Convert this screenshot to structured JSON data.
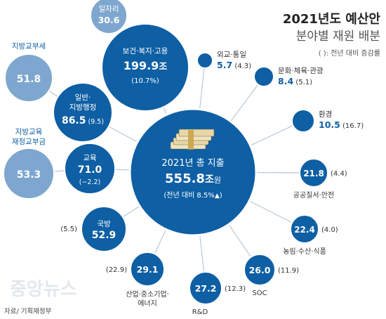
{
  "header": {
    "title": "2021년도 예산안",
    "subtitle": "분야별 재원 배분",
    "legend_note": "( ): 전년 대비 증감률"
  },
  "footer": {
    "source": "자료/ 기획재정부",
    "watermark": "중앙뉴스"
  },
  "colors": {
    "dark": "#0e5fa4",
    "light": "#7ea7cf",
    "connector": "#b9c7d4",
    "text_dark": "#333333"
  },
  "chart_data": {
    "type": "bubble",
    "title": "2021년도 예산안",
    "subtitle": "분야별 재원 배분",
    "unit_note": "( ): 전년 대비 증감률",
    "center": {
      "line1": "2021년 총 지출",
      "value": "555.8",
      "unit_jo": "조",
      "unit_won": "원",
      "change_text": "(전년 대비 8.5%",
      "change_arrow": "▲",
      "change_close": ")",
      "total_trillion_won": 555.8,
      "change_pct": 8.5
    },
    "series": [
      {
        "id": "welfare",
        "name": "보건·복지·고용",
        "value": 199.9,
        "value_text": "199.9",
        "unit": "조",
        "change_text": "(10.7%)",
        "change_pct": 10.7,
        "kind": "major"
      },
      {
        "id": "general-admin",
        "name_lines": [
          "일반·",
          "지방행정"
        ],
        "value": 86.5,
        "value_text": "86.5",
        "change_text": "(9.5)",
        "change_pct": 9.5,
        "kind": "major"
      },
      {
        "id": "education",
        "name": "교육",
        "value": 71.0,
        "value_text": "71.0",
        "change_text": "(−2.2)",
        "change_pct": -2.2,
        "kind": "major"
      },
      {
        "id": "defense",
        "name": "국방",
        "value": 52.9,
        "value_text": "52.9",
        "change_text": "(5.5)",
        "change_pct": 5.5,
        "kind": "major"
      },
      {
        "id": "industry",
        "name_lines": [
          "산업·중소기업·",
          "에너지"
        ],
        "value": 29.1,
        "value_text": "29.1",
        "change_text": "(22.9)",
        "change_pct": 22.9,
        "kind": "major"
      },
      {
        "id": "rnd",
        "name": "R&D",
        "value": 27.2,
        "value_text": "27.2",
        "change_text": "(12.3)",
        "change_pct": 12.3,
        "kind": "major"
      },
      {
        "id": "soc",
        "name": "SOC",
        "value": 26.0,
        "value_text": "26.0",
        "change_text": "(11.9)",
        "change_pct": 11.9,
        "kind": "major"
      },
      {
        "id": "agriculture",
        "name": "농림·수산·식품",
        "value": 22.4,
        "value_text": "22.4",
        "change_text": "(4.0)",
        "change_pct": 4.0,
        "kind": "major"
      },
      {
        "id": "public-order",
        "name": "공공질서·안전",
        "value": 21.8,
        "value_text": "21.8",
        "change_text": "(4.4)",
        "change_pct": 4.4,
        "kind": "major"
      },
      {
        "id": "environment",
        "name": "환경",
        "value": 10.5,
        "value_text": "10.5",
        "change_text": "(16.7)",
        "change_pct": 16.7,
        "kind": "major"
      },
      {
        "id": "culture",
        "name": "문화·체육·관광",
        "value": 8.4,
        "value_text": "8.4",
        "change_text": "(5.1)",
        "change_pct": 5.1,
        "kind": "major"
      },
      {
        "id": "diplomacy",
        "name": "외교·통일",
        "value": 5.7,
        "value_text": "5.7",
        "change_text": "(4.3)",
        "change_pct": 4.3,
        "kind": "major"
      },
      {
        "id": "jobs",
        "name": "일자리",
        "value": 30.6,
        "value_text": "30.6",
        "kind": "sub",
        "parent": "welfare"
      },
      {
        "id": "local-grant",
        "name": "지방교부세",
        "value": 51.8,
        "value_text": "51.8",
        "kind": "sub",
        "parent": "general-admin"
      },
      {
        "id": "local-edu-grant",
        "name_lines": [
          "지방교육",
          "재정교부금"
        ],
        "value": 53.3,
        "value_text": "53.3",
        "kind": "sub",
        "parent": "education"
      }
    ]
  }
}
